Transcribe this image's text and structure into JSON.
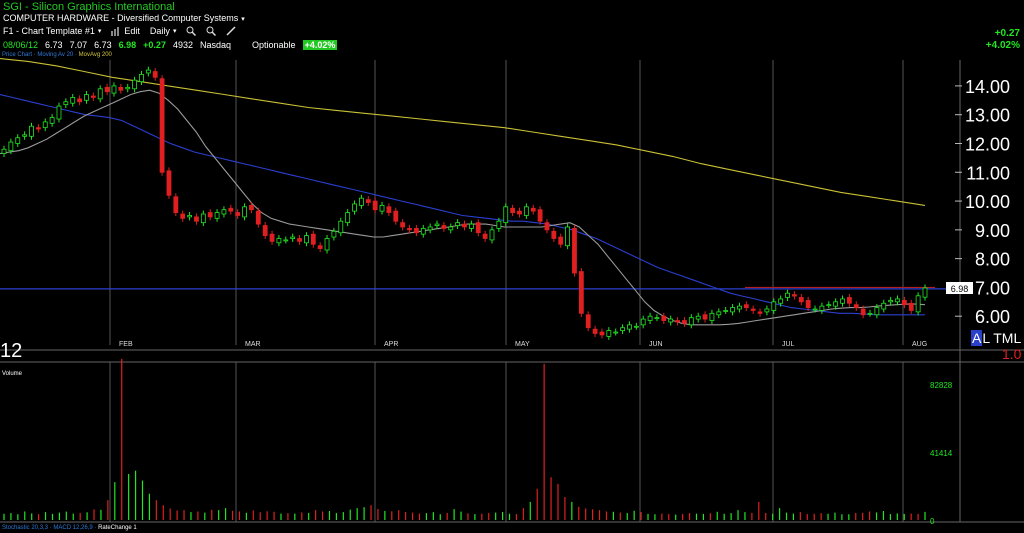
{
  "header": {
    "title": "SGI - Silicon Graphics International",
    "subtitle": "COMPUTER HARDWARE - Diversified Computer Systems",
    "subtitle_caret": "▾",
    "template": "F1 - Chart Template #1",
    "template_caret": "▾",
    "edit_label": "Edit",
    "period": "Daily",
    "period_caret": "▾"
  },
  "quote": {
    "date": "08/06/12",
    "open": "6.73",
    "high": "7.07",
    "low": "6.73",
    "close": "6.98",
    "change": "+0.27",
    "volume": "4932",
    "exchange": "Nasdaq",
    "optionable": "Optionable",
    "change_pct_badge": "+4.02%"
  },
  "top_right": {
    "change": "+0.27",
    "change_pct": "+4.02%"
  },
  "legend": {
    "price": "Price Chart",
    "ma_short": "Moving Av 20",
    "ma_long": "MovAvg 200"
  },
  "volume_legend": "Volume",
  "bottom_legend": {
    "ind1": "Stochastic 20,3,3",
    "ind2": "MACD 12,26,9",
    "ind3": "RateChange 1"
  },
  "altml": {
    "letter": "A",
    "text": "L TML",
    "value": "1.0"
  },
  "year_label": "12",
  "colors": {
    "up": "#22e622",
    "down": "#e02020",
    "ma20": "#9a9a9a",
    "ma50": "#2a3fd0",
    "ma200": "#c9c034",
    "grid": "#555555"
  },
  "chart_data": [
    {
      "type": "candlestick",
      "title": "SGI - Silicon Graphics International",
      "ylim": [
        5.0,
        14.9
      ],
      "yticks": [
        "14.00",
        "13.00",
        "12.00",
        "11.00",
        "10.00",
        "9.00",
        "8.00",
        "7.00",
        "6.00"
      ],
      "xticks": [
        "FEB",
        "MAR",
        "APR",
        "MAY",
        "JUN",
        "JUL",
        "AUG"
      ],
      "last_price_label": "6.98",
      "horizontal_line": 6.95,
      "resistance_line": 7.0,
      "closes": [
        11.8,
        12.05,
        12.2,
        12.3,
        12.6,
        12.5,
        12.75,
        12.9,
        13.3,
        13.45,
        13.6,
        13.45,
        13.7,
        13.6,
        13.9,
        13.8,
        14.0,
        13.85,
        13.95,
        14.2,
        14.4,
        14.55,
        14.3,
        11.0,
        10.2,
        9.6,
        9.4,
        9.5,
        9.3,
        9.55,
        9.45,
        9.6,
        9.7,
        9.65,
        9.5,
        9.8,
        9.7,
        9.2,
        8.8,
        8.6,
        8.7,
        8.65,
        8.75,
        8.6,
        8.8,
        8.5,
        8.35,
        8.7,
        8.95,
        9.3,
        9.6,
        9.9,
        10.1,
        9.95,
        9.7,
        9.85,
        9.6,
        9.3,
        9.1,
        9.0,
        8.9,
        9.05,
        9.1,
        9.2,
        9.05,
        9.1,
        9.25,
        9.1,
        9.2,
        8.9,
        8.7,
        9.0,
        9.3,
        9.8,
        9.6,
        9.55,
        9.8,
        9.65,
        9.3,
        9.0,
        8.7,
        8.5,
        9.1,
        7.5,
        6.1,
        5.6,
        5.4,
        5.35,
        5.5,
        5.45,
        5.6,
        5.7,
        5.65,
        5.9,
        6.0,
        5.95,
        5.85,
        5.9,
        5.8,
        5.75,
        5.95,
        6.0,
        5.9,
        6.1,
        6.15,
        6.2,
        6.3,
        6.35,
        6.3,
        6.2,
        6.1,
        6.25,
        6.5,
        6.6,
        6.8,
        6.7,
        6.5,
        6.3,
        6.25,
        6.35,
        6.4,
        6.5,
        6.6,
        6.45,
        6.3,
        6.05,
        6.1,
        6.3,
        6.45,
        6.55,
        6.6,
        6.4,
        6.2,
        6.71,
        6.98
      ],
      "ma20": [
        11.65,
        11.7,
        11.75,
        11.85,
        12.0,
        12.15,
        12.35,
        12.55,
        12.75,
        12.95,
        13.1,
        13.25,
        13.4,
        13.55,
        13.7,
        13.8,
        13.85,
        13.75,
        13.5,
        13.2,
        12.8,
        12.4,
        11.9,
        11.5,
        11.1,
        10.7,
        10.3,
        9.9,
        9.6,
        9.4,
        9.3,
        9.2,
        9.15,
        9.1,
        9.05,
        9.0,
        8.95,
        8.9,
        8.85,
        8.8,
        8.75,
        8.75,
        8.8,
        8.85,
        8.9,
        8.95,
        9.0,
        9.05,
        9.1,
        9.15,
        9.2,
        9.2,
        9.2,
        9.15,
        9.1,
        9.1,
        9.1,
        9.1,
        9.1,
        9.15,
        9.2,
        9.25,
        9.1,
        8.8,
        8.5,
        8.1,
        7.7,
        7.3,
        6.9,
        6.5,
        6.2,
        6.0,
        5.85,
        5.75,
        5.7,
        5.7,
        5.7,
        5.7,
        5.72,
        5.75,
        5.8,
        5.85,
        5.9,
        5.95,
        6.0,
        6.05,
        6.1,
        6.15,
        6.2,
        6.25,
        6.28,
        6.3,
        6.3,
        6.32,
        6.35,
        6.38,
        6.4,
        6.42,
        6.42,
        6.4
      ],
      "ma50": [
        13.7,
        13.6,
        13.5,
        13.4,
        13.3,
        13.2,
        13.1,
        13.0,
        12.95,
        12.9,
        12.8,
        12.6,
        12.4,
        12.2,
        12.0,
        11.85,
        11.7,
        11.6,
        11.5,
        11.4,
        11.3,
        11.2,
        11.1,
        11.0,
        10.9,
        10.8,
        10.7,
        10.6,
        10.5,
        10.4,
        10.3,
        10.2,
        10.1,
        10.0,
        9.9,
        9.8,
        9.7,
        9.6,
        9.5,
        9.45,
        9.4,
        9.35,
        9.3,
        9.3,
        9.25,
        9.2,
        9.1,
        9.0,
        8.85,
        8.7,
        8.5,
        8.3,
        8.1,
        7.9,
        7.7,
        7.55,
        7.4,
        7.25,
        7.1,
        6.95,
        6.8,
        6.7,
        6.6,
        6.5,
        6.4,
        6.3,
        6.25,
        6.2,
        6.15,
        6.1,
        6.1,
        6.08,
        6.05,
        6.05,
        6.05,
        6.05,
        6.05
      ],
      "ma200": [
        14.95,
        14.85,
        14.7,
        14.5,
        14.3,
        14.15,
        14.0,
        13.85,
        13.7,
        13.55,
        13.4,
        13.25,
        13.15,
        13.05,
        12.95,
        12.85,
        12.75,
        12.65,
        12.55,
        12.4,
        12.25,
        12.1,
        11.95,
        11.75,
        11.55,
        11.3,
        11.1,
        10.9,
        10.7,
        10.5,
        10.3,
        10.15,
        10.0,
        9.85
      ]
    },
    {
      "type": "bar",
      "title": "Volume",
      "yticks": [
        "82828",
        "41414",
        "0"
      ],
      "ylim": [
        0,
        90000
      ],
      "values": [
        3800,
        4200,
        3500,
        5200,
        4000,
        3600,
        4800,
        3700,
        4500,
        5100,
        3900,
        4300,
        4700,
        6500,
        6200,
        12000,
        23000,
        98000,
        28000,
        30000,
        24000,
        16000,
        12000,
        9000,
        7000,
        5800,
        6000,
        4800,
        5200,
        4500,
        6200,
        6000,
        7200,
        5600,
        5200,
        4400,
        5800,
        4700,
        5300,
        5000,
        3900,
        4200,
        3900,
        4600,
        4300,
        6000,
        5200,
        5500,
        4200,
        4800,
        6300,
        7200,
        7800,
        9000,
        6700,
        5500,
        5300,
        6000,
        4800,
        4500,
        3900,
        4200,
        4800,
        3500,
        4300,
        6600,
        5100,
        4100,
        3600,
        3800,
        4200,
        4500,
        4900,
        3800,
        3600,
        7200,
        11000,
        19000,
        95000,
        26000,
        22000,
        14000,
        11000,
        8000,
        7000,
        6500,
        6000,
        5200,
        5000,
        4500,
        4200,
        5600,
        4800,
        3700,
        3500,
        3900,
        3600,
        3300,
        3700,
        4200,
        3900,
        3700,
        4100,
        5000,
        3800,
        4200,
        6000,
        4800,
        4300,
        11000,
        4300,
        3800,
        7200,
        4500,
        3900,
        4800,
        3600,
        3800,
        4200,
        3800,
        4500,
        3500,
        3500,
        4300,
        4400,
        5200,
        4600,
        5500,
        3600,
        4000,
        3700,
        3900,
        3700,
        4932
      ]
    }
  ]
}
